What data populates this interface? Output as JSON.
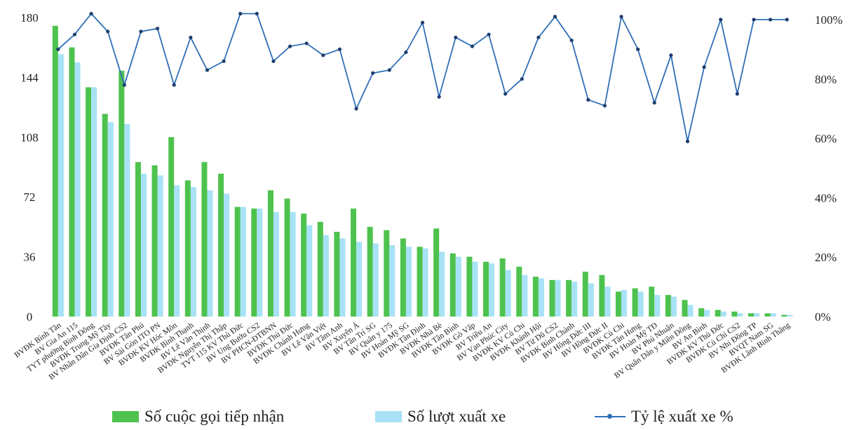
{
  "chart_data": {
    "type": "bar",
    "categories": [
      "BVĐK Bình Tân",
      "BV Gia An 115",
      "TYT phường Bình Đông",
      "BVĐK Trung Mỹ Tây",
      "BV Nhân Dân Gia Định CS2",
      "BVĐK Tân Phú",
      "BV Sài Gòn ITO PN",
      "BVĐK KV Hóc Môn",
      "BVĐK Bình Thạnh",
      "BV Lê Văn Thịnh",
      "BVĐK Nguyễn Thị Thập",
      "TVT 115 KV Thủ Đức",
      "BV Ung Bướu CS2",
      "BV PHCN-ĐTBNN",
      "BVĐK Thủ Đức",
      "BVĐK Chánh Hưng",
      "BV Lê Văn Việt",
      "BV Tâm Anh",
      "BV Xuyên Á",
      "BV Tân Trí SG",
      "BV Quân y 175",
      "BV Hoàn Mỹ SG",
      "BVĐK Tân Định",
      "BVĐK Nhà Bè",
      "BVĐK Tân Bình",
      "BVĐK Gò Vấp",
      "BV Triều An",
      "BV Vạn Phúc City",
      "BVĐK KV Củ Chi",
      "BVĐK Khánh Hội",
      "BV Từ Dũ CS2",
      "BVĐK Bình Chánh",
      "BV Hồng Đức III",
      "BV Hồng Đức II",
      "BVĐK Củ Chi",
      "BVĐK Tân Hưng",
      "BV Hoàn Mỹ TĐ",
      "BV Phú Nhuận",
      "BV Quân Dân y Miền Đông",
      "BV An Bình",
      "BVĐK KV Thủ Đức",
      "BVĐK Củ Chi CS2",
      "BV Nhi Đồng TP",
      "BVQT Nam SG",
      "BVĐK Lãnh Bình Thăng"
    ],
    "series": [
      {
        "name": "Số cuộc gọi tiếp nhận",
        "color": "#4ec24e",
        "values": [
          175,
          162,
          138,
          122,
          148,
          93,
          91,
          108,
          82,
          93,
          86,
          66,
          65,
          76,
          71,
          62,
          57,
          51,
          65,
          54,
          52,
          47,
          42,
          53,
          38,
          36,
          33,
          35,
          30,
          24,
          22,
          22,
          27,
          25,
          15,
          17,
          18,
          13,
          10,
          5,
          4,
          3,
          2,
          2,
          1
        ]
      },
      {
        "name": "Số lượt xuất xe",
        "color": "#a8e2f6",
        "values": [
          158,
          153,
          138,
          117,
          116,
          86,
          85,
          79,
          78,
          76,
          74,
          66,
          65,
          63,
          63,
          55,
          49,
          47,
          45,
          44,
          43,
          42,
          41,
          39,
          36,
          33,
          32,
          28,
          25,
          23,
          22,
          21,
          20,
          18,
          16,
          15,
          13,
          12,
          7,
          4,
          3,
          2,
          2,
          2,
          1
        ]
      },
      {
        "name": "Tỷ lệ xuất xe %",
        "color": "#2f6fb8",
        "axis": "right",
        "values": [
          90,
          95,
          102,
          96,
          78,
          96,
          97,
          78,
          94,
          83,
          86,
          102,
          102,
          86,
          91,
          92,
          88,
          90,
          70,
          82,
          83,
          89,
          99,
          74,
          94,
          91,
          95,
          75,
          80,
          94,
          101,
          93,
          73,
          71,
          101,
          90,
          72,
          88,
          59,
          84,
          100,
          75,
          100,
          100,
          100
        ]
      }
    ],
    "yTicks": [
      "0",
      "36",
      "72",
      "108",
      "144",
      "180"
    ],
    "y2Ticks": [
      "0%",
      "20%",
      "40%",
      "60%",
      "80%",
      "100%"
    ],
    "ylim": [
      0,
      180
    ],
    "y2lim": [
      0,
      100
    ],
    "legend_position": "bottom",
    "grid": false
  },
  "legend": {
    "bars1": "Số cuộc gọi tiếp nhận",
    "bars2": "Số lượt xuất xe",
    "line": "Tỷ lệ xuất xe %"
  }
}
